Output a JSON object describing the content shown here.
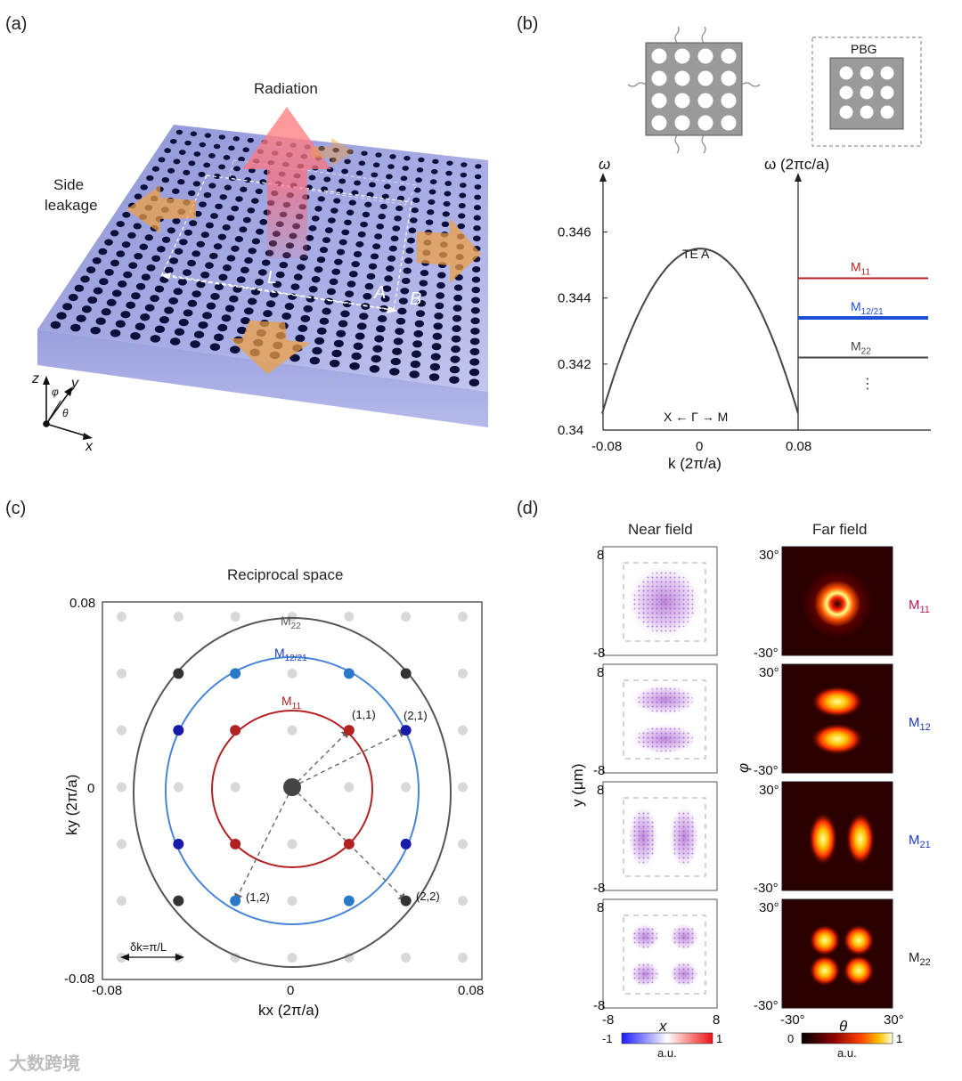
{
  "panels": {
    "a": {
      "label": "(a)",
      "radiation": "Radiation",
      "side_leakage_1": "Side",
      "side_leakage_2": "leakage",
      "dim_L": "L",
      "region_A": "A",
      "region_B": "B",
      "axis_z": "z",
      "axis_y": "y",
      "axis_x": "x",
      "angle_phi": "φ",
      "angle_theta": "θ"
    },
    "b": {
      "label": "(b)",
      "pbg": "PBG",
      "left_ylabel": "ω",
      "right_ylabel": "ω (2πc/a)",
      "xlabel": "k (2π/a)",
      "path_label": "X ← Γ → M",
      "band_label": "TE A",
      "modes": [
        {
          "name": "M11",
          "base": "M",
          "sub": "11",
          "freq": 0.3446,
          "color": "#b22222"
        },
        {
          "name": "M12/21",
          "base": "M",
          "sub": "12/21",
          "freq": 0.3434,
          "color": "#1e4fd8"
        },
        {
          "name": "M22",
          "base": "M",
          "sub": "22",
          "freq": 0.3422,
          "color": "#444444"
        }
      ],
      "ellipsis": "⋮",
      "y_ticks": [
        "0.34",
        "0.342",
        "0.344",
        "0.346"
      ],
      "x_ticks": [
        "-0.08",
        "0",
        "0.08"
      ]
    },
    "c": {
      "label": "(c)",
      "title": "Reciprocal space",
      "xlabel": "kx (2π/a)",
      "ylabel": "ky (2π/a)",
      "x_ticks": [
        "-0.08",
        "0",
        "0.08"
      ],
      "y_ticks": [
        "-0.08",
        "0",
        "0.08"
      ],
      "circles": [
        {
          "name": "M22",
          "base": "M",
          "sub": "22",
          "color": "#555555"
        },
        {
          "name": "M12/21",
          "base": "M",
          "sub": "12/21",
          "color": "#4a86d6"
        },
        {
          "name": "M11",
          "base": "M",
          "sub": "11",
          "color": "#b22222"
        }
      ],
      "point_labels": [
        "(1,1)",
        "(2,1)",
        "(1,2)",
        "(2,2)"
      ],
      "delta_k": "δk=π/L"
    },
    "d": {
      "label": "(d)",
      "near_title": "Near field",
      "far_title": "Far field",
      "near_ylabel": "y (μm)",
      "near_xlabel": "x",
      "far_ylabel": "φ",
      "far_xlabel": "θ",
      "near_ticks": {
        "top": "8",
        "bottom": "-8",
        "left": "-8",
        "right": "8"
      },
      "far_ticks": {
        "top": "30°",
        "bottom": "-30°",
        "left": "-30°",
        "right": "30°"
      },
      "modes": [
        {
          "base": "M",
          "sub": "11",
          "color": "#c2185b"
        },
        {
          "base": "M",
          "sub": "12",
          "color": "#1a3bbf"
        },
        {
          "base": "M",
          "sub": "21",
          "color": "#1a3bbf"
        },
        {
          "base": "M",
          "sub": "22",
          "color": "#222222"
        }
      ],
      "near_cbar": {
        "min": "-1",
        "max": "1",
        "unit": "a.u."
      },
      "far_cbar": {
        "min": "0",
        "max": "1",
        "unit": "a.u."
      }
    }
  },
  "watermark": "大数跨境"
}
